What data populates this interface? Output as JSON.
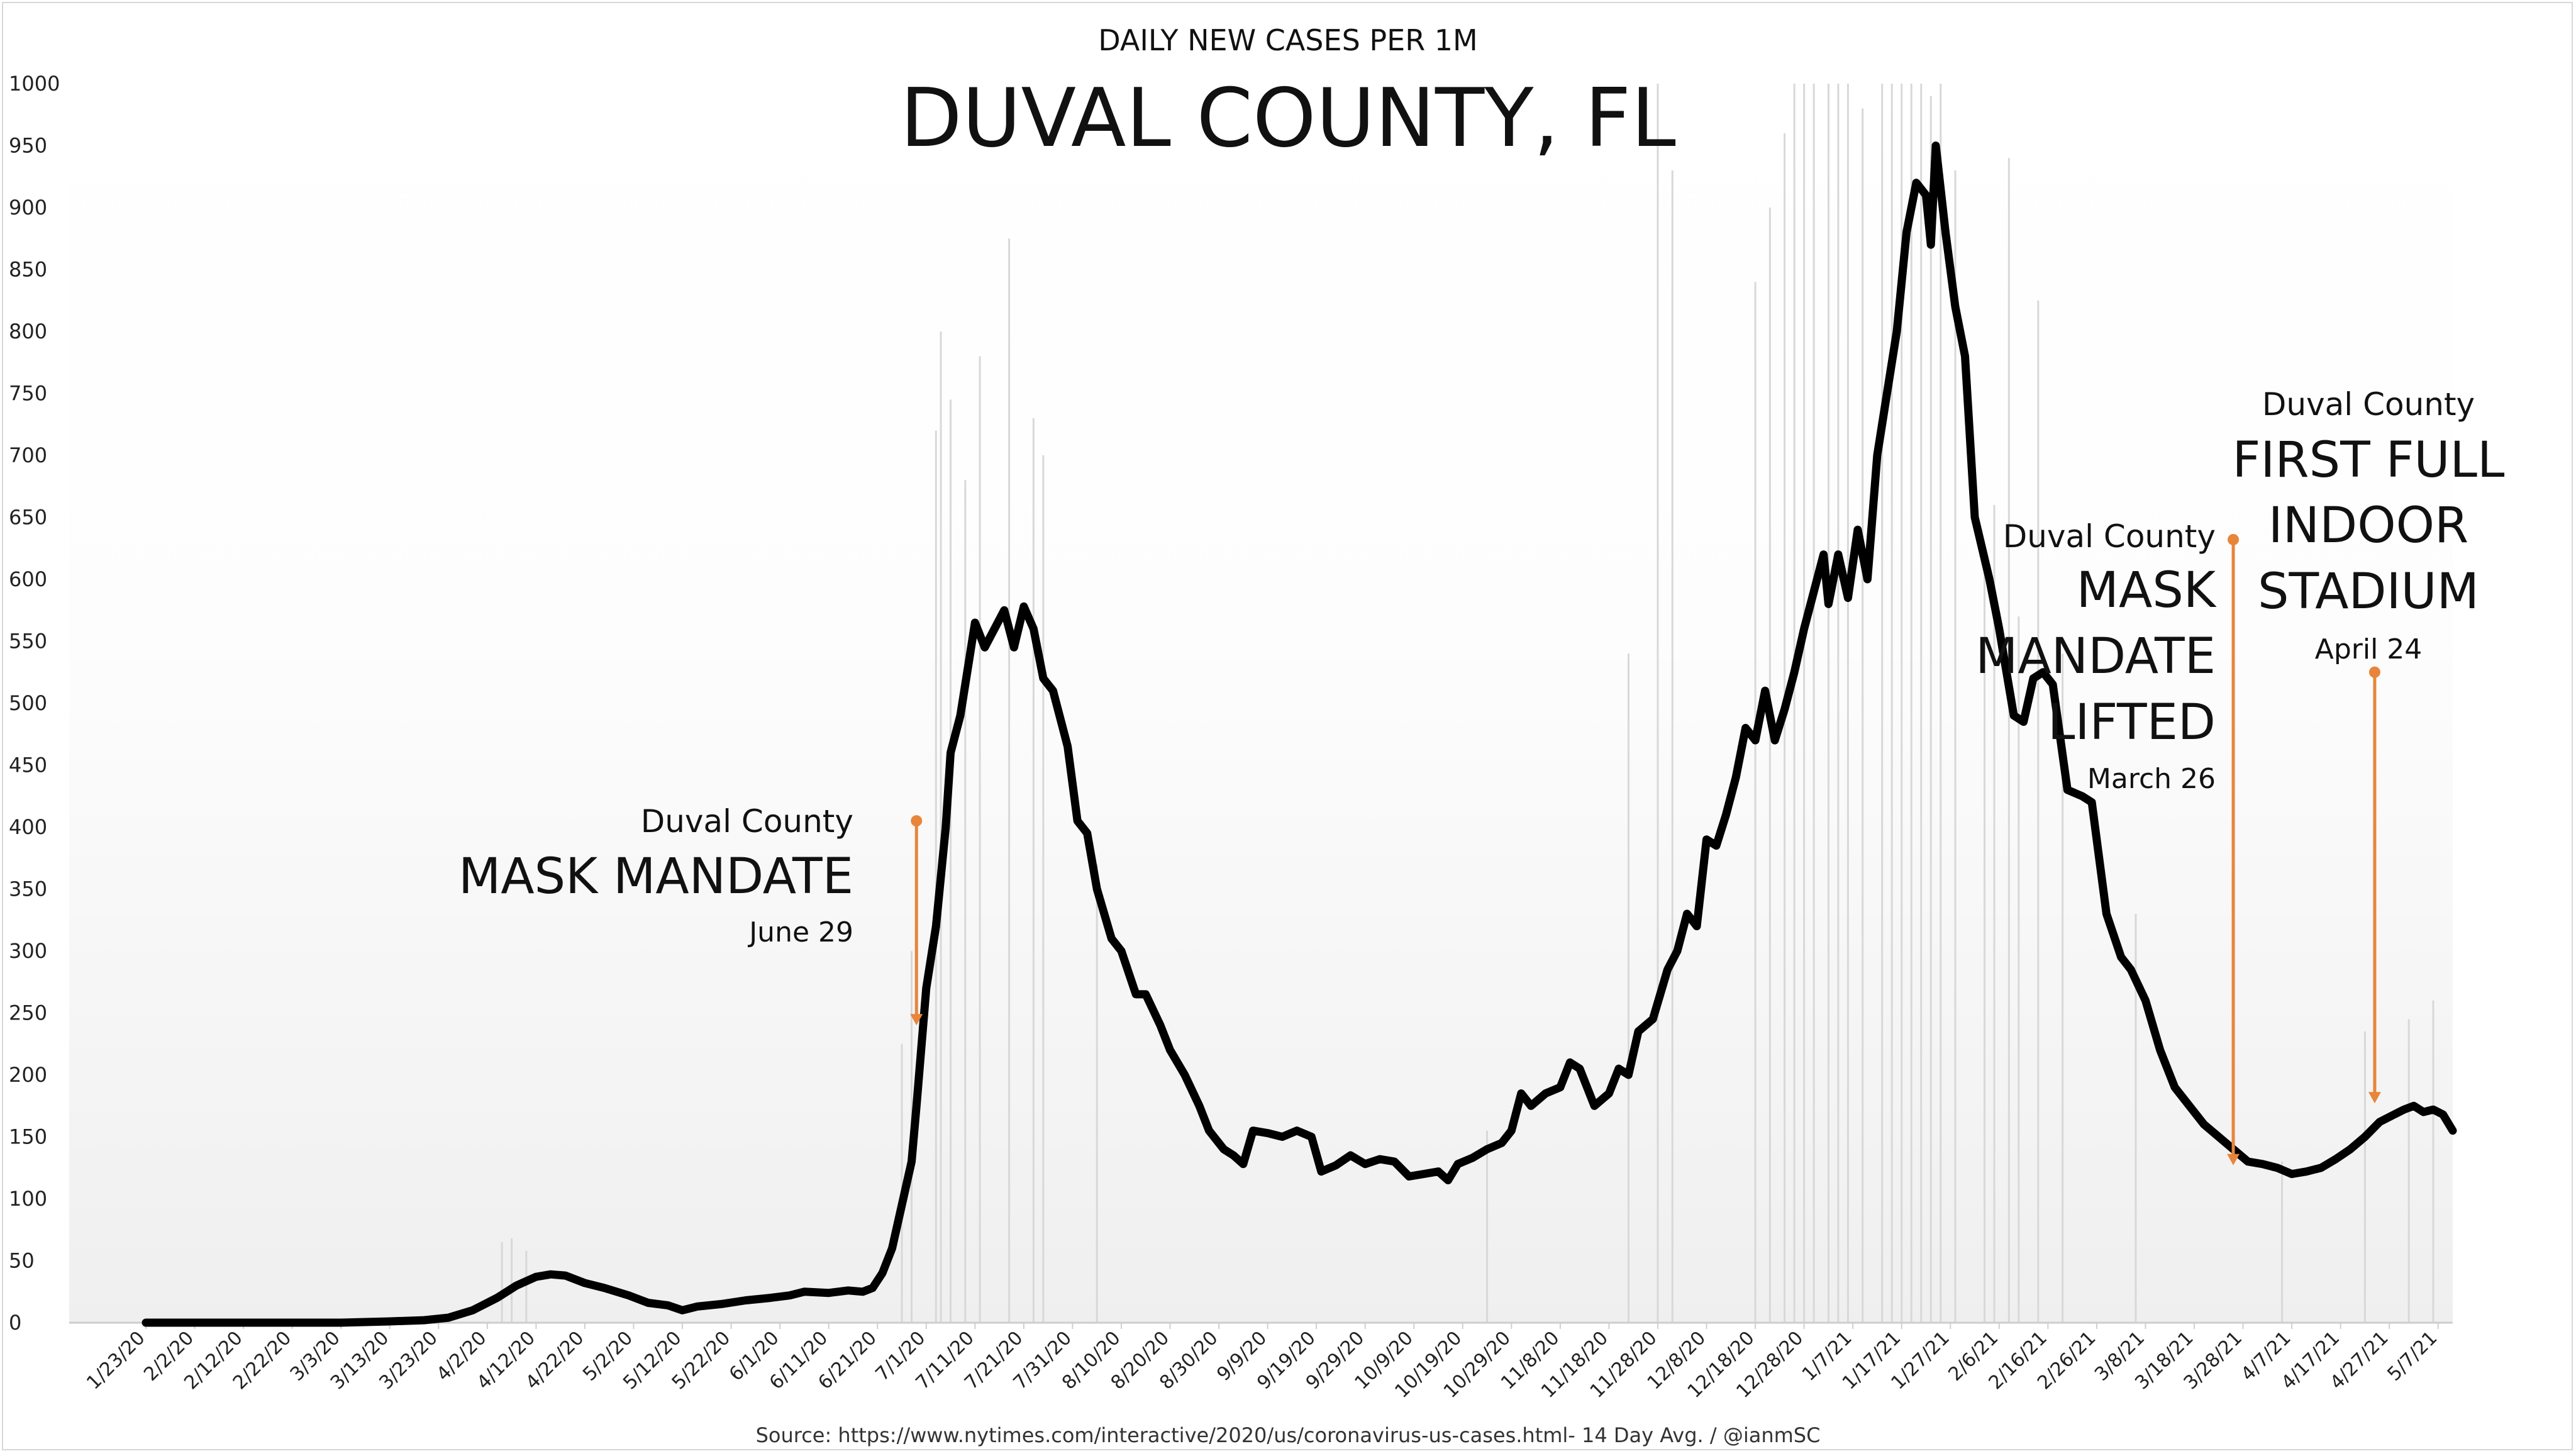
{
  "chart_data": {
    "type": "line",
    "subtitle": "DAILY NEW CASES PER 1M",
    "title": "DUVAL COUNTY, FL",
    "source": "Source: https://www.nytimes.com/interactive/2020/us/coronavirus-us-cases.html- 14 Day Avg. / @ianmSC",
    "xlabel": "",
    "ylabel": "",
    "ylim": [
      0,
      1000
    ],
    "y_ticks": [
      "0",
      "50",
      "100",
      "150",
      "200",
      "250",
      "300",
      "350",
      "400",
      "450",
      "500",
      "550",
      "600",
      "650",
      "700",
      "750",
      "800",
      "850",
      "900",
      "950",
      "1000"
    ],
    "x_ticks": [
      {
        "label": "1/23/20",
        "date": "2020-01-23"
      },
      {
        "label": "2/2/20",
        "date": "2020-02-02"
      },
      {
        "label": "2/12/20",
        "date": "2020-02-12"
      },
      {
        "label": "2/22/20",
        "date": "2020-02-22"
      },
      {
        "label": "3/3/20",
        "date": "2020-03-03"
      },
      {
        "label": "3/13/20",
        "date": "2020-03-13"
      },
      {
        "label": "3/23/20",
        "date": "2020-03-23"
      },
      {
        "label": "4/2/20",
        "date": "2020-04-02"
      },
      {
        "label": "4/12/20",
        "date": "2020-04-12"
      },
      {
        "label": "4/22/20",
        "date": "2020-04-22"
      },
      {
        "label": "5/2/20",
        "date": "2020-05-02"
      },
      {
        "label": "5/12/20",
        "date": "2020-05-12"
      },
      {
        "label": "5/22/20",
        "date": "2020-05-22"
      },
      {
        "label": "6/1/20",
        "date": "2020-06-01"
      },
      {
        "label": "6/11/20",
        "date": "2020-06-11"
      },
      {
        "label": "6/21/20",
        "date": "2020-06-21"
      },
      {
        "label": "7/1/20",
        "date": "2020-07-01"
      },
      {
        "label": "7/11/20",
        "date": "2020-07-11"
      },
      {
        "label": "7/21/20",
        "date": "2020-07-21"
      },
      {
        "label": "7/31/20",
        "date": "2020-07-31"
      },
      {
        "label": "8/10/20",
        "date": "2020-08-10"
      },
      {
        "label": "8/20/20",
        "date": "2020-08-20"
      },
      {
        "label": "8/30/20",
        "date": "2020-08-30"
      },
      {
        "label": "9/9/20",
        "date": "2020-09-09"
      },
      {
        "label": "9/19/20",
        "date": "2020-09-19"
      },
      {
        "label": "9/29/20",
        "date": "2020-09-29"
      },
      {
        "label": "10/9/20",
        "date": "2020-10-09"
      },
      {
        "label": "10/19/20",
        "date": "2020-10-19"
      },
      {
        "label": "10/29/20",
        "date": "2020-10-29"
      },
      {
        "label": "11/8/20",
        "date": "2020-11-08"
      },
      {
        "label": "11/18/20",
        "date": "2020-11-18"
      },
      {
        "label": "11/28/20",
        "date": "2020-11-28"
      },
      {
        "label": "12/8/20",
        "date": "2020-12-08"
      },
      {
        "label": "12/18/20",
        "date": "2020-12-18"
      },
      {
        "label": "12/28/20",
        "date": "2020-12-28"
      },
      {
        "label": "1/7/21",
        "date": "2021-01-07"
      },
      {
        "label": "1/17/21",
        "date": "2021-01-17"
      },
      {
        "label": "1/27/21",
        "date": "2021-01-27"
      },
      {
        "label": "2/6/21",
        "date": "2021-02-06"
      },
      {
        "label": "2/16/21",
        "date": "2021-02-16"
      },
      {
        "label": "2/26/21",
        "date": "2021-02-26"
      },
      {
        "label": "3/8/21",
        "date": "2021-03-08"
      },
      {
        "label": "3/18/21",
        "date": "2021-03-18"
      },
      {
        "label": "3/28/21",
        "date": "2021-03-28"
      },
      {
        "label": "4/7/21",
        "date": "2021-04-07"
      },
      {
        "label": "4/17/21",
        "date": "2021-04-17"
      },
      {
        "label": "4/27/21",
        "date": "2021-04-27"
      },
      {
        "label": "5/7/21",
        "date": "2021-05-07"
      }
    ],
    "x_range": [
      "2020-01-23",
      "2021-05-10"
    ],
    "grid": false,
    "legend": "none",
    "series": [
      {
        "type": "line",
        "points": [
          [
            "2020-01-23",
            0
          ],
          [
            "2020-02-02",
            0
          ],
          [
            "2020-02-12",
            0
          ],
          [
            "2020-02-22",
            0
          ],
          [
            "2020-03-03",
            0
          ],
          [
            "2020-03-13",
            1
          ],
          [
            "2020-03-20",
            2
          ],
          [
            "2020-03-25",
            4
          ],
          [
            "2020-03-30",
            10
          ],
          [
            "2020-04-04",
            20
          ],
          [
            "2020-04-08",
            30
          ],
          [
            "2020-04-12",
            37
          ],
          [
            "2020-04-15",
            39
          ],
          [
            "2020-04-18",
            38
          ],
          [
            "2020-04-22",
            32
          ],
          [
            "2020-04-26",
            28
          ],
          [
            "2020-05-01",
            22
          ],
          [
            "2020-05-05",
            16
          ],
          [
            "2020-05-09",
            14
          ],
          [
            "2020-05-12",
            10
          ],
          [
            "2020-05-15",
            13
          ],
          [
            "2020-05-20",
            15
          ],
          [
            "2020-05-25",
            18
          ],
          [
            "2020-05-30",
            20
          ],
          [
            "2020-06-03",
            22
          ],
          [
            "2020-06-06",
            25
          ],
          [
            "2020-06-11",
            24
          ],
          [
            "2020-06-15",
            26
          ],
          [
            "2020-06-18",
            25
          ],
          [
            "2020-06-20",
            28
          ],
          [
            "2020-06-22",
            40
          ],
          [
            "2020-06-24",
            60
          ],
          [
            "2020-06-26",
            95
          ],
          [
            "2020-06-28",
            130
          ],
          [
            "2020-06-29",
            175
          ],
          [
            "2020-07-01",
            270
          ],
          [
            "2020-07-03",
            320
          ],
          [
            "2020-07-05",
            400
          ],
          [
            "2020-07-06",
            460
          ],
          [
            "2020-07-08",
            490
          ],
          [
            "2020-07-10",
            540
          ],
          [
            "2020-07-11",
            565
          ],
          [
            "2020-07-13",
            545
          ],
          [
            "2020-07-15",
            560
          ],
          [
            "2020-07-17",
            575
          ],
          [
            "2020-07-19",
            545
          ],
          [
            "2020-07-21",
            578
          ],
          [
            "2020-07-23",
            560
          ],
          [
            "2020-07-25",
            520
          ],
          [
            "2020-07-27",
            510
          ],
          [
            "2020-07-30",
            465
          ],
          [
            "2020-08-01",
            405
          ],
          [
            "2020-08-03",
            395
          ],
          [
            "2020-08-05",
            350
          ],
          [
            "2020-08-08",
            310
          ],
          [
            "2020-08-10",
            300
          ],
          [
            "2020-08-13",
            265
          ],
          [
            "2020-08-15",
            265
          ],
          [
            "2020-08-18",
            240
          ],
          [
            "2020-08-20",
            220
          ],
          [
            "2020-08-23",
            200
          ],
          [
            "2020-08-26",
            175
          ],
          [
            "2020-08-28",
            155
          ],
          [
            "2020-08-31",
            140
          ],
          [
            "2020-09-02",
            135
          ],
          [
            "2020-09-04",
            128
          ],
          [
            "2020-09-06",
            155
          ],
          [
            "2020-09-09",
            153
          ],
          [
            "2020-09-12",
            150
          ],
          [
            "2020-09-15",
            155
          ],
          [
            "2020-09-18",
            150
          ],
          [
            "2020-09-20",
            122
          ],
          [
            "2020-09-23",
            127
          ],
          [
            "2020-09-26",
            135
          ],
          [
            "2020-09-29",
            128
          ],
          [
            "2020-10-02",
            132
          ],
          [
            "2020-10-05",
            130
          ],
          [
            "2020-10-08",
            118
          ],
          [
            "2020-10-11",
            120
          ],
          [
            "2020-10-14",
            122
          ],
          [
            "2020-10-16",
            115
          ],
          [
            "2020-10-18",
            128
          ],
          [
            "2020-10-21",
            133
          ],
          [
            "2020-10-24",
            140
          ],
          [
            "2020-10-27",
            145
          ],
          [
            "2020-10-29",
            155
          ],
          [
            "2020-10-31",
            185
          ],
          [
            "2020-11-02",
            175
          ],
          [
            "2020-11-05",
            185
          ],
          [
            "2020-11-08",
            190
          ],
          [
            "2020-11-10",
            210
          ],
          [
            "2020-11-12",
            205
          ],
          [
            "2020-11-15",
            175
          ],
          [
            "2020-11-18",
            185
          ],
          [
            "2020-11-20",
            205
          ],
          [
            "2020-11-22",
            200
          ],
          [
            "2020-11-24",
            235
          ],
          [
            "2020-11-27",
            245
          ],
          [
            "2020-11-30",
            285
          ],
          [
            "2020-12-02",
            300
          ],
          [
            "2020-12-04",
            330
          ],
          [
            "2020-12-06",
            320
          ],
          [
            "2020-12-08",
            390
          ],
          [
            "2020-12-10",
            385
          ],
          [
            "2020-12-12",
            410
          ],
          [
            "2020-12-14",
            440
          ],
          [
            "2020-12-16",
            480
          ],
          [
            "2020-12-18",
            470
          ],
          [
            "2020-12-20",
            510
          ],
          [
            "2020-12-22",
            470
          ],
          [
            "2020-12-24",
            495
          ],
          [
            "2020-12-26",
            525
          ],
          [
            "2020-12-28",
            560
          ],
          [
            "2020-12-30",
            590
          ],
          [
            "2021-01-01",
            620
          ],
          [
            "2021-01-02",
            580
          ],
          [
            "2021-01-04",
            620
          ],
          [
            "2021-01-06",
            585
          ],
          [
            "2021-01-08",
            640
          ],
          [
            "2021-01-10",
            600
          ],
          [
            "2021-01-12",
            700
          ],
          [
            "2021-01-14",
            750
          ],
          [
            "2021-01-16",
            800
          ],
          [
            "2021-01-18",
            880
          ],
          [
            "2021-01-20",
            920
          ],
          [
            "2021-01-22",
            910
          ],
          [
            "2021-01-23",
            870
          ],
          [
            "2021-01-24",
            950
          ],
          [
            "2021-01-26",
            880
          ],
          [
            "2021-01-28",
            820
          ],
          [
            "2021-01-30",
            780
          ],
          [
            "2021-02-01",
            650
          ],
          [
            "2021-02-04",
            600
          ],
          [
            "2021-02-06",
            560
          ],
          [
            "2021-02-09",
            490
          ],
          [
            "2021-02-11",
            485
          ],
          [
            "2021-02-13",
            520
          ],
          [
            "2021-02-15",
            525
          ],
          [
            "2021-02-17",
            515
          ],
          [
            "2021-02-20",
            430
          ],
          [
            "2021-02-23",
            425
          ],
          [
            "2021-02-25",
            420
          ],
          [
            "2021-02-28",
            330
          ],
          [
            "2021-03-03",
            295
          ],
          [
            "2021-03-05",
            285
          ],
          [
            "2021-03-08",
            260
          ],
          [
            "2021-03-11",
            220
          ],
          [
            "2021-03-14",
            190
          ],
          [
            "2021-03-17",
            175
          ],
          [
            "2021-03-20",
            160
          ],
          [
            "2021-03-23",
            150
          ],
          [
            "2021-03-26",
            140
          ],
          [
            "2021-03-29",
            130
          ],
          [
            "2021-04-01",
            128
          ],
          [
            "2021-04-04",
            125
          ],
          [
            "2021-04-07",
            120
          ],
          [
            "2021-04-10",
            122
          ],
          [
            "2021-04-13",
            125
          ],
          [
            "2021-04-16",
            132
          ],
          [
            "2021-04-19",
            140
          ],
          [
            "2021-04-22",
            150
          ],
          [
            "2021-04-25",
            162
          ],
          [
            "2021-04-28",
            168
          ],
          [
            "2021-04-30",
            172
          ],
          [
            "2021-05-02",
            175
          ],
          [
            "2021-05-04",
            170
          ],
          [
            "2021-05-06",
            172
          ],
          [
            "2021-05-08",
            168
          ],
          [
            "2021-05-10",
            155
          ]
        ]
      },
      {
        "type": "bar",
        "color": "#d8d8d8",
        "points": [
          [
            "2020-04-05",
            65
          ],
          [
            "2020-04-07",
            68
          ],
          [
            "2020-04-10",
            58
          ],
          [
            "2020-06-26",
            225
          ],
          [
            "2020-06-28",
            300
          ],
          [
            "2020-07-03",
            720
          ],
          [
            "2020-07-04",
            800
          ],
          [
            "2020-07-06",
            745
          ],
          [
            "2020-07-09",
            680
          ],
          [
            "2020-07-12",
            780
          ],
          [
            "2020-07-18",
            875
          ],
          [
            "2020-07-23",
            730
          ],
          [
            "2020-07-25",
            700
          ],
          [
            "2020-08-05",
            370
          ],
          [
            "2020-10-24",
            155
          ],
          [
            "2020-11-22",
            540
          ],
          [
            "2020-11-28",
            1000
          ],
          [
            "2020-12-01",
            930
          ],
          [
            "2020-12-18",
            840
          ],
          [
            "2020-12-21",
            900
          ],
          [
            "2020-12-24",
            960
          ],
          [
            "2020-12-26",
            1000
          ],
          [
            "2020-12-28",
            1000
          ],
          [
            "2020-12-30",
            1000
          ],
          [
            "2021-01-02",
            1000
          ],
          [
            "2021-01-04",
            1000
          ],
          [
            "2021-01-06",
            1000
          ],
          [
            "2021-01-09",
            980
          ],
          [
            "2021-01-13",
            1000
          ],
          [
            "2021-01-15",
            1000
          ],
          [
            "2021-01-17",
            1000
          ],
          [
            "2021-01-19",
            1000
          ],
          [
            "2021-01-21",
            1000
          ],
          [
            "2021-01-23",
            990
          ],
          [
            "2021-01-25",
            1000
          ],
          [
            "2021-01-28",
            930
          ],
          [
            "2021-02-03",
            620
          ],
          [
            "2021-02-05",
            660
          ],
          [
            "2021-02-08",
            940
          ],
          [
            "2021-02-10",
            570
          ],
          [
            "2021-02-14",
            825
          ],
          [
            "2021-02-19",
            540
          ],
          [
            "2021-03-06",
            330
          ],
          [
            "2021-04-05",
            130
          ],
          [
            "2021-04-22",
            235
          ],
          [
            "2021-05-01",
            245
          ],
          [
            "2021-05-06",
            260
          ]
        ]
      }
    ],
    "annotations": [
      {
        "date": "2020-06-29",
        "line1": "Duval County",
        "line2": "MASK MANDATE",
        "line3": "June 29",
        "from_y": 405,
        "to_y": 240
      },
      {
        "date": "2021-03-26",
        "line1": "Duval County",
        "line2": "MASK",
        "line3": "MANDATE",
        "line4": "LIFTED",
        "line5": "March 26",
        "from_y": 632,
        "to_y": 127
      },
      {
        "date": "2021-04-24",
        "line1": "Duval County",
        "line2": "FIRST FULL",
        "line3": "INDOOR",
        "line4": "STADIUM",
        "line5": "April 24",
        "from_y": 525,
        "to_y": 177
      }
    ],
    "colors": {
      "line": "#000000",
      "bars": "#d8d8d8",
      "annotation": "#e8853a",
      "text": "#111111"
    }
  }
}
